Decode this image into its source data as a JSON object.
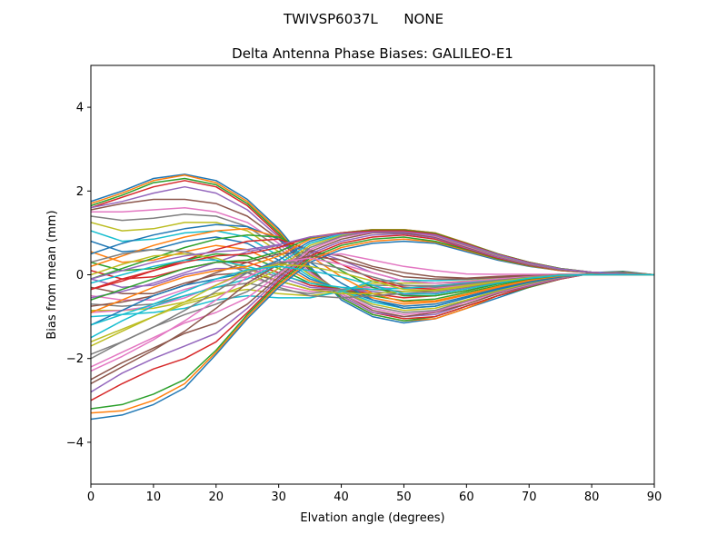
{
  "suptitle": "TWIVSP6037L      NONE",
  "chart_data": {
    "type": "line",
    "title": "Delta Antenna Phase Biases: GALILEO-E1",
    "xlabel": "Elvation angle (degrees)",
    "ylabel": "Bias from mean (mm)",
    "xlim": [
      0,
      90
    ],
    "ylim": [
      -5,
      5
    ],
    "xticks": [
      0,
      10,
      20,
      30,
      40,
      50,
      60,
      70,
      80,
      90
    ],
    "yticks": [
      -4,
      -2,
      0,
      2,
      4
    ],
    "grid": false,
    "x": [
      0,
      5,
      10,
      15,
      20,
      25,
      30,
      35,
      40,
      45,
      50,
      55,
      60,
      65,
      70,
      75,
      80,
      85,
      90
    ],
    "colors": [
      "#1f77b4",
      "#ff7f0e",
      "#2ca02c",
      "#d62728",
      "#9467bd",
      "#8c564b",
      "#e377c2",
      "#7f7f7f",
      "#bcbd22",
      "#17becf"
    ],
    "series": [
      {
        "values": [
          1.75,
          2.0,
          2.3,
          2.4,
          2.25,
          1.8,
          1.1,
          0.2,
          -0.6,
          -1.0,
          -1.15,
          -1.05,
          -0.8,
          -0.55,
          -0.3,
          -0.1,
          0.05,
          0.08,
          0.0
        ]
      },
      {
        "values": [
          1.7,
          1.95,
          2.25,
          2.38,
          2.2,
          1.75,
          1.05,
          0.15,
          -0.55,
          -0.95,
          -1.1,
          -1.05,
          -0.8,
          -0.5,
          -0.3,
          -0.1,
          0.04,
          0.07,
          0.0
        ]
      },
      {
        "values": [
          1.65,
          1.9,
          2.2,
          2.3,
          2.15,
          1.7,
          1.0,
          0.15,
          -0.55,
          -0.95,
          -1.1,
          -1.0,
          -0.75,
          -0.5,
          -0.3,
          -0.1,
          0.04,
          0.07,
          0.0
        ]
      },
      {
        "values": [
          1.6,
          1.85,
          2.1,
          2.25,
          2.1,
          1.65,
          0.95,
          0.1,
          -0.5,
          -0.9,
          -1.05,
          -1.0,
          -0.75,
          -0.5,
          -0.28,
          -0.1,
          0.03,
          0.06,
          0.0
        ]
      },
      {
        "values": [
          1.6,
          1.75,
          1.95,
          2.1,
          1.95,
          1.55,
          0.9,
          0.1,
          -0.5,
          -0.9,
          -1.0,
          -0.95,
          -0.7,
          -0.45,
          -0.27,
          -0.09,
          0.03,
          0.06,
          0.0
        ]
      },
      {
        "values": [
          1.55,
          1.7,
          1.8,
          1.8,
          1.7,
          1.4,
          0.85,
          0.1,
          -0.45,
          -0.85,
          -1.0,
          -0.9,
          -0.7,
          -0.45,
          -0.25,
          -0.08,
          0.03,
          0.06,
          0.0
        ]
      },
      {
        "values": [
          1.5,
          1.5,
          1.55,
          1.6,
          1.5,
          1.25,
          0.75,
          0.05,
          -0.45,
          -0.8,
          -0.95,
          -0.88,
          -0.65,
          -0.42,
          -0.24,
          -0.07,
          0.03,
          0.05,
          0.0
        ]
      },
      {
        "values": [
          1.4,
          1.3,
          1.35,
          1.45,
          1.4,
          1.15,
          0.65,
          0.0,
          -0.4,
          -0.75,
          -0.9,
          -0.85,
          -0.62,
          -0.4,
          -0.22,
          -0.06,
          0.03,
          0.05,
          0.0
        ]
      },
      {
        "values": [
          1.25,
          1.05,
          1.1,
          1.25,
          1.25,
          1.05,
          0.55,
          0.0,
          -0.4,
          -0.7,
          -0.85,
          -0.8,
          -0.6,
          -0.38,
          -0.2,
          -0.05,
          0.02,
          0.04,
          0.0
        ]
      },
      {
        "values": [
          1.05,
          0.8,
          0.85,
          1.0,
          1.05,
          0.9,
          0.45,
          -0.05,
          -0.38,
          -0.65,
          -0.8,
          -0.75,
          -0.55,
          -0.35,
          -0.18,
          -0.04,
          0.02,
          0.04,
          0.0
        ]
      },
      {
        "values": [
          0.8,
          0.55,
          0.6,
          0.8,
          0.9,
          0.75,
          0.35,
          -0.1,
          -0.35,
          -0.6,
          -0.75,
          -0.7,
          -0.52,
          -0.32,
          -0.16,
          -0.03,
          0.02,
          0.03,
          0.0
        ]
      },
      {
        "values": [
          0.55,
          0.3,
          0.35,
          0.55,
          0.7,
          0.6,
          0.25,
          -0.15,
          -0.35,
          -0.55,
          -0.7,
          -0.65,
          -0.48,
          -0.3,
          -0.14,
          -0.02,
          0.02,
          0.03,
          0.0
        ]
      },
      {
        "values": [
          0.3,
          0.1,
          0.15,
          0.35,
          0.5,
          0.45,
          0.15,
          -0.2,
          -0.35,
          -0.5,
          -0.62,
          -0.58,
          -0.42,
          -0.26,
          -0.12,
          -0.02,
          0.01,
          0.02,
          0.0
        ]
      },
      {
        "values": [
          0.1,
          -0.1,
          -0.05,
          0.15,
          0.3,
          0.3,
          0.05,
          -0.25,
          -0.35,
          -0.45,
          -0.55,
          -0.5,
          -0.38,
          -0.22,
          -0.1,
          -0.01,
          0.01,
          0.02,
          0.0
        ]
      },
      {
        "values": [
          -0.1,
          -0.3,
          -0.25,
          0.0,
          0.15,
          0.15,
          -0.05,
          -0.3,
          -0.35,
          -0.4,
          -0.48,
          -0.44,
          -0.33,
          -0.19,
          -0.08,
          0.0,
          0.01,
          0.02,
          0.0
        ]
      },
      {
        "values": [
          -0.3,
          -0.45,
          -0.45,
          -0.2,
          0.0,
          0.05,
          -0.15,
          -0.35,
          -0.35,
          -0.35,
          -0.4,
          -0.38,
          -0.28,
          -0.16,
          -0.06,
          0.0,
          0.01,
          0.01,
          0.0
        ]
      },
      {
        "values": [
          -0.5,
          -0.6,
          -0.6,
          -0.35,
          -0.15,
          -0.05,
          -0.25,
          -0.4,
          -0.35,
          -0.3,
          -0.33,
          -0.32,
          -0.24,
          -0.13,
          -0.05,
          0.0,
          0.01,
          0.01,
          0.0
        ]
      },
      {
        "values": [
          -0.7,
          -0.75,
          -0.7,
          -0.5,
          -0.3,
          -0.2,
          -0.35,
          -0.45,
          -0.35,
          -0.25,
          -0.26,
          -0.26,
          -0.2,
          -0.1,
          -0.04,
          0.0,
          0.0,
          0.01,
          0.0
        ]
      },
      {
        "values": [
          -0.85,
          -0.85,
          -0.8,
          -0.65,
          -0.45,
          -0.35,
          -0.45,
          -0.5,
          -0.4,
          -0.2,
          -0.2,
          -0.2,
          -0.15,
          -0.08,
          -0.03,
          0.0,
          0.0,
          0.01,
          0.0
        ]
      },
      {
        "values": [
          -1.0,
          -0.95,
          -0.9,
          -0.8,
          -0.6,
          -0.5,
          -0.55,
          -0.55,
          -0.4,
          -0.15,
          -0.13,
          -0.14,
          -0.11,
          -0.06,
          -0.02,
          0.0,
          0.0,
          0.0,
          0.0
        ]
      },
      {
        "values": [
          0.5,
          0.75,
          0.95,
          1.1,
          1.2,
          1.15,
          0.85,
          0.3,
          -0.2,
          -0.6,
          -0.8,
          -0.75,
          -0.55,
          -0.35,
          -0.18,
          -0.05,
          0.02,
          0.04,
          0.0
        ]
      },
      {
        "values": [
          0.2,
          0.45,
          0.7,
          0.9,
          1.05,
          1.1,
          0.9,
          0.45,
          -0.05,
          -0.45,
          -0.65,
          -0.62,
          -0.46,
          -0.28,
          -0.13,
          -0.03,
          0.02,
          0.03,
          0.0
        ]
      },
      {
        "values": [
          -0.1,
          0.15,
          0.4,
          0.65,
          0.85,
          0.95,
          0.9,
          0.55,
          0.1,
          -0.3,
          -0.5,
          -0.5,
          -0.38,
          -0.22,
          -0.1,
          -0.02,
          0.01,
          0.02,
          0.0
        ]
      },
      {
        "values": [
          -0.35,
          -0.15,
          0.1,
          0.35,
          0.6,
          0.8,
          0.85,
          0.6,
          0.25,
          -0.1,
          -0.3,
          -0.35,
          -0.28,
          -0.16,
          -0.07,
          -0.01,
          0.01,
          0.02,
          0.0
        ]
      },
      {
        "values": [
          -0.55,
          -0.4,
          -0.2,
          0.05,
          0.3,
          0.55,
          0.7,
          0.6,
          0.35,
          0.05,
          -0.15,
          -0.2,
          -0.18,
          -0.1,
          -0.04,
          0.0,
          0.01,
          0.01,
          0.0
        ]
      },
      {
        "values": [
          -0.75,
          -0.65,
          -0.5,
          -0.25,
          0.05,
          0.3,
          0.5,
          0.55,
          0.45,
          0.2,
          0.05,
          -0.05,
          -0.08,
          -0.04,
          -0.01,
          0.01,
          0.01,
          0.01,
          0.0
        ]
      },
      {
        "values": [
          -0.9,
          -0.85,
          -0.75,
          -0.55,
          -0.25,
          0.05,
          0.3,
          0.45,
          0.5,
          0.35,
          0.2,
          0.1,
          0.02,
          0.01,
          0.01,
          0.01,
          0.01,
          0.0,
          0.0
        ]
      },
      {
        "values": [
          0.3,
          0.5,
          0.6,
          0.55,
          0.35,
          0.05,
          -0.3,
          -0.5,
          -0.55,
          -0.5,
          -0.45,
          -0.4,
          -0.3,
          -0.18,
          -0.08,
          -0.02,
          0.01,
          0.01,
          0.0
        ]
      },
      {
        "values": [
          0.0,
          0.25,
          0.45,
          0.5,
          0.4,
          0.15,
          -0.15,
          -0.35,
          -0.45,
          -0.45,
          -0.4,
          -0.36,
          -0.26,
          -0.15,
          -0.07,
          -0.01,
          0.01,
          0.01,
          0.0
        ]
      },
      {
        "values": [
          -0.2,
          0.0,
          0.2,
          0.35,
          0.35,
          0.2,
          0.0,
          -0.2,
          -0.3,
          -0.35,
          -0.32,
          -0.28,
          -0.2,
          -0.11,
          -0.05,
          0.0,
          0.01,
          0.01,
          0.0
        ]
      },
      {
        "values": [
          -3.45,
          -3.35,
          -3.1,
          -2.7,
          -1.9,
          -1.05,
          -0.3,
          0.3,
          0.6,
          0.75,
          0.8,
          0.75,
          0.55,
          0.35,
          0.2,
          0.1,
          0.05,
          0.02,
          0.0
        ]
      },
      {
        "values": [
          -3.3,
          -3.25,
          -3.0,
          -2.6,
          -1.85,
          -1.0,
          -0.25,
          0.35,
          0.65,
          0.8,
          0.85,
          0.78,
          0.58,
          0.37,
          0.21,
          0.1,
          0.05,
          0.02,
          0.0
        ]
      },
      {
        "values": [
          -3.2,
          -3.1,
          -2.85,
          -2.5,
          -1.8,
          -0.95,
          -0.2,
          0.4,
          0.7,
          0.85,
          0.9,
          0.8,
          0.6,
          0.38,
          0.22,
          0.11,
          0.05,
          0.02,
          0.0
        ]
      },
      {
        "values": [
          -3.0,
          -2.6,
          -2.25,
          -2.0,
          -1.6,
          -0.9,
          -0.15,
          0.45,
          0.75,
          0.9,
          0.95,
          0.85,
          0.62,
          0.4,
          0.23,
          0.11,
          0.05,
          0.02,
          0.0
        ]
      },
      {
        "values": [
          -2.8,
          -2.35,
          -2.0,
          -1.7,
          -1.4,
          -0.8,
          -0.1,
          0.5,
          0.8,
          0.95,
          0.98,
          0.88,
          0.64,
          0.42,
          0.24,
          0.12,
          0.05,
          0.02,
          0.0
        ]
      },
      {
        "values": [
          -2.5,
          -2.1,
          -1.75,
          -1.4,
          -1.15,
          -0.7,
          -0.05,
          0.55,
          0.85,
          1.0,
          1.0,
          0.9,
          0.66,
          0.44,
          0.25,
          0.12,
          0.05,
          0.02,
          0.0
        ]
      },
      {
        "values": [
          -2.2,
          -1.85,
          -1.5,
          -1.15,
          -0.9,
          -0.55,
          0.0,
          0.6,
          0.9,
          1.02,
          1.03,
          0.92,
          0.68,
          0.45,
          0.26,
          0.13,
          0.06,
          0.02,
          0.0
        ]
      },
      {
        "values": [
          -2.0,
          -1.6,
          -1.25,
          -0.95,
          -0.7,
          -0.4,
          0.05,
          0.65,
          0.92,
          1.05,
          1.05,
          0.94,
          0.7,
          0.46,
          0.27,
          0.13,
          0.06,
          0.02,
          0.0
        ]
      },
      {
        "values": [
          -1.7,
          -1.35,
          -1.0,
          -0.7,
          -0.5,
          -0.25,
          0.15,
          0.7,
          0.95,
          1.06,
          1.06,
          0.96,
          0.72,
          0.47,
          0.28,
          0.14,
          0.06,
          0.02,
          0.0
        ]
      },
      {
        "values": [
          -1.5,
          -1.1,
          -0.75,
          -0.5,
          -0.3,
          -0.1,
          0.25,
          0.75,
          0.97,
          1.07,
          1.07,
          0.98,
          0.74,
          0.48,
          0.29,
          0.14,
          0.06,
          0.02,
          0.0
        ]
      },
      {
        "values": [
          -1.2,
          -0.85,
          -0.5,
          -0.25,
          -0.1,
          0.05,
          0.35,
          0.8,
          1.0,
          1.08,
          1.08,
          1.0,
          0.75,
          0.5,
          0.3,
          0.15,
          0.06,
          0.02,
          0.0
        ]
      },
      {
        "values": [
          -0.9,
          -0.6,
          -0.3,
          -0.05,
          0.1,
          0.2,
          0.45,
          0.85,
          1.0,
          1.08,
          1.08,
          1.0,
          0.76,
          0.5,
          0.3,
          0.15,
          0.06,
          0.02,
          0.0
        ]
      },
      {
        "values": [
          -0.6,
          -0.35,
          -0.1,
          0.15,
          0.3,
          0.35,
          0.55,
          0.88,
          1.0,
          1.07,
          1.07,
          0.99,
          0.75,
          0.5,
          0.3,
          0.15,
          0.06,
          0.02,
          0.0
        ]
      },
      {
        "values": [
          -0.35,
          -0.1,
          0.1,
          0.3,
          0.45,
          0.5,
          0.65,
          0.9,
          1.0,
          1.05,
          1.05,
          0.97,
          0.74,
          0.49,
          0.29,
          0.14,
          0.06,
          0.02,
          0.0
        ]
      },
      {
        "values": [
          -0.1,
          0.1,
          0.3,
          0.45,
          0.55,
          0.6,
          0.72,
          0.9,
          0.98,
          1.02,
          1.02,
          0.95,
          0.72,
          0.48,
          0.28,
          0.14,
          0.06,
          0.02,
          0.0
        ]
      },
      {
        "values": [
          -2.6,
          -2.2,
          -1.8,
          -1.35,
          -0.8,
          -0.2,
          0.25,
          0.45,
          0.35,
          0.15,
          -0.05,
          -0.1,
          -0.1,
          -0.06,
          -0.03,
          0.0,
          0.0,
          0.0,
          0.0
        ]
      },
      {
        "values": [
          -2.3,
          -1.95,
          -1.55,
          -1.1,
          -0.6,
          -0.05,
          0.3,
          0.4,
          0.25,
          0.05,
          -0.15,
          -0.2,
          -0.16,
          -0.1,
          -0.05,
          0.0,
          0.0,
          0.0,
          0.0
        ]
      },
      {
        "values": [
          -1.9,
          -1.6,
          -1.25,
          -0.85,
          -0.4,
          0.05,
          0.3,
          0.3,
          0.15,
          -0.05,
          -0.25,
          -0.3,
          -0.22,
          -0.13,
          -0.06,
          0.0,
          0.0,
          0.0,
          0.0
        ]
      },
      {
        "values": [
          -1.6,
          -1.3,
          -1.0,
          -0.65,
          -0.25,
          0.1,
          0.25,
          0.2,
          0.05,
          -0.15,
          -0.35,
          -0.38,
          -0.28,
          -0.16,
          -0.07,
          -0.01,
          0.0,
          0.0,
          0.0
        ]
      },
      {
        "values": [
          -1.2,
          -0.95,
          -0.7,
          -0.4,
          -0.1,
          0.12,
          0.2,
          0.1,
          -0.05,
          -0.25,
          -0.45,
          -0.46,
          -0.34,
          -0.2,
          -0.08,
          -0.01,
          0.0,
          0.0,
          0.0
        ]
      }
    ]
  }
}
